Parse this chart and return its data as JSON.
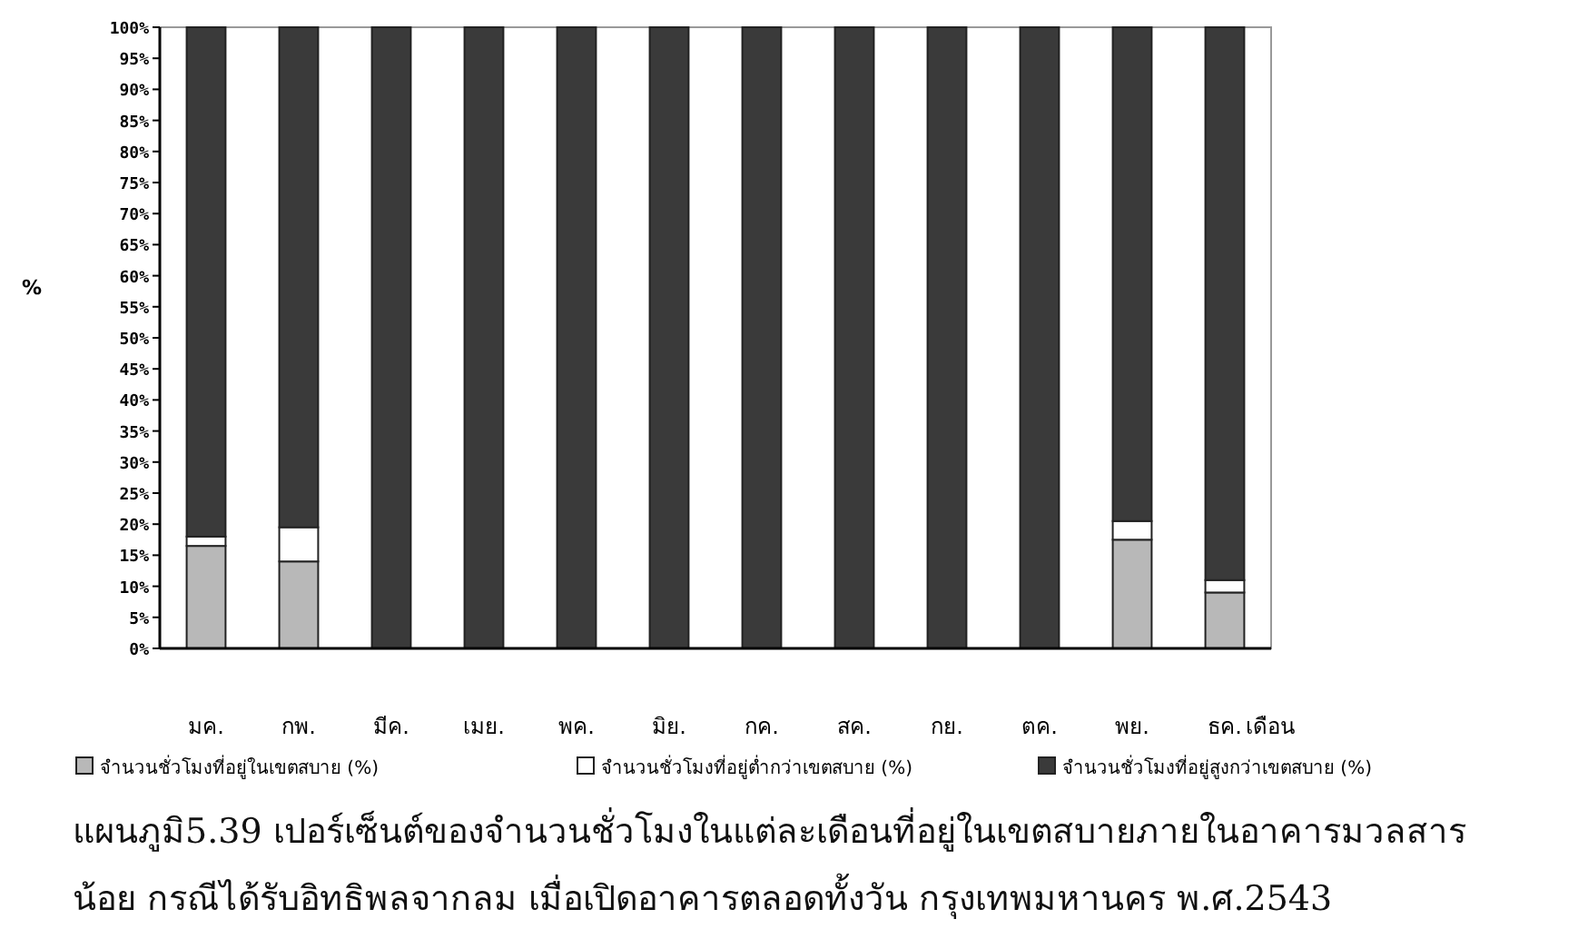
{
  "chart_data": {
    "type": "bar",
    "stacked": true,
    "ylabel": "%",
    "xlabel": "เดือน",
    "categories": [
      "มค.",
      "กพ.",
      "มีค.",
      "เมย.",
      "พค.",
      "มิย.",
      "กค.",
      "สค.",
      "กย.",
      "ตค.",
      "พย.",
      "ธค."
    ],
    "series": [
      {
        "name": "จำนวนชั่วโมงที่อยู่ในเขตสบาย (%)",
        "color": "#b8b8b8",
        "values": [
          16.5,
          14,
          0,
          0,
          0,
          0,
          0,
          0,
          0,
          0,
          17.5,
          9
        ]
      },
      {
        "name": "จำนวนชั่วโมงที่อยู่ต่ำกว่าเขตสบาย (%)",
        "color": "#ffffff",
        "values": [
          1.5,
          5.5,
          0,
          0,
          0,
          0,
          0,
          0,
          0,
          0,
          3,
          2
        ]
      },
      {
        "name": "จำนวนชั่วโมงที่อยู่สูงกว่าเขตสบาย (%)",
        "color": "#3a3a3a",
        "values": [
          82,
          80.5,
          100,
          100,
          100,
          100,
          100,
          100,
          100,
          100,
          79.5,
          89
        ]
      }
    ],
    "ylim": [
      0,
      100
    ],
    "yticks": [
      {
        "value": 0,
        "label": "0%"
      },
      {
        "value": 5,
        "label": "5%"
      },
      {
        "value": 10,
        "label": "10%"
      },
      {
        "value": 15,
        "label": "15%"
      },
      {
        "value": 20,
        "label": "20%"
      },
      {
        "value": 25,
        "label": "25%"
      },
      {
        "value": 30,
        "label": "30%"
      },
      {
        "value": 35,
        "label": "35%"
      },
      {
        "value": 40,
        "label": "40%"
      },
      {
        "value": 45,
        "label": "45%"
      },
      {
        "value": 50,
        "label": "50%"
      },
      {
        "value": 55,
        "label": "55%"
      },
      {
        "value": 60,
        "label": "60%"
      },
      {
        "value": 65,
        "label": "65%"
      },
      {
        "value": 70,
        "label": "70%"
      },
      {
        "value": 75,
        "label": "75%"
      },
      {
        "value": 80,
        "label": "80%"
      },
      {
        "value": 85,
        "label": "85%"
      },
      {
        "value": 90,
        "label": "90%"
      },
      {
        "value": 95,
        "label": "95%"
      },
      {
        "value": 100,
        "label": "100%"
      }
    ],
    "grid": false,
    "legend": "bottom",
    "annotations": [
      "แผนภูมิ5.39 เปอร์เซ็นต์ของจำนวนชั่วโมงในแต่ละเดือนที่อยู่ในเขตสบายภายในอาคารมวลสารน้อย กรณีได้รับอิทธิพลจากลม เมื่อเปิดอาคารตลอดทั้งวัน กรุงเทพมหานคร พ.ศ.2543"
    ]
  }
}
